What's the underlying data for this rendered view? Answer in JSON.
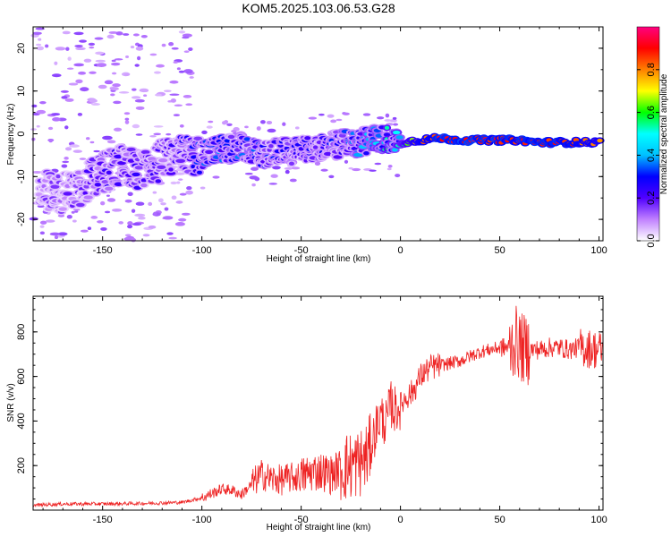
{
  "title": "KOM5.2025.103.06.53.G28",
  "chart_data": [
    {
      "type": "heatmap",
      "xlabel": "Height of straight line (km)",
      "ylabel": "Frequency (Hz)",
      "xlim": [
        -185,
        102
      ],
      "ylim": [
        -25,
        25
      ],
      "xticks": [
        -150,
        -100,
        -50,
        0,
        50,
        100
      ],
      "yticks": [
        -20,
        -10,
        0,
        10,
        20
      ],
      "colorbar": {
        "label": "Normalized spectral amplitude",
        "range": [
          0,
          1
        ],
        "ticks": [
          0.0,
          0.2,
          0.4,
          0.6,
          0.8
        ],
        "colormap": [
          "#ffffff",
          "#c080ff",
          "#5000ff",
          "#0000ff",
          "#00c0ff",
          "#00ffff",
          "#00ff00",
          "#ffff00",
          "#ff8000",
          "#ff0000",
          "#ff0080"
        ]
      },
      "ridge": {
        "x": [
          -180,
          -170,
          -160,
          -150,
          -140,
          -130,
          -120,
          -110,
          -100,
          -90,
          -80,
          -70,
          -60,
          -50,
          -40,
          -30,
          -20,
          -10,
          0,
          10,
          20,
          30,
          40,
          50,
          60,
          70,
          80,
          90,
          100
        ],
        "frequency": [
          -13,
          -14,
          -12,
          -9,
          -7,
          -9,
          -6,
          -5,
          -5,
          -3.5,
          -3,
          -5,
          -4,
          -4,
          -3,
          -2.5,
          -2,
          -1,
          -2,
          -1.5,
          -1,
          -1.5,
          -1.5,
          -1.5,
          -1.5,
          -2,
          -2,
          -2,
          -2
        ],
        "amplitude": [
          0.15,
          0.15,
          0.18,
          0.2,
          0.22,
          0.2,
          0.2,
          0.22,
          0.3,
          0.35,
          0.3,
          0.3,
          0.25,
          0.25,
          0.25,
          0.28,
          0.35,
          0.45,
          0.5,
          0.8,
          0.9,
          0.92,
          0.9,
          0.9,
          0.88,
          0.9,
          0.88,
          0.85,
          0.75
        ]
      }
    },
    {
      "type": "line",
      "xlabel": "Height of straight line (km)",
      "ylabel": "SNR (v/v)",
      "xlim": [
        -185,
        102
      ],
      "ylim": [
        0,
        960
      ],
      "xticks": [
        -150,
        -100,
        -50,
        0,
        50,
        100
      ],
      "yticks": [
        200,
        400,
        600,
        800
      ],
      "color": "#ee2222",
      "series": [
        {
          "x": [
            -185,
            -170,
            -150,
            -130,
            -110,
            -100,
            -95,
            -90,
            -85,
            -80,
            -75,
            -70,
            -65,
            -60,
            -55,
            -50,
            -45,
            -40,
            -35,
            -30,
            -25,
            -20,
            -17,
            -15,
            -12,
            -10,
            -7,
            -5,
            -3,
            0,
            3,
            5,
            8,
            10,
            15,
            20,
            25,
            30,
            35,
            40,
            45,
            50,
            55,
            58,
            60,
            62,
            65,
            70,
            75,
            80,
            85,
            90,
            95,
            100,
            102
          ],
          "values": [
            22,
            28,
            28,
            30,
            35,
            55,
            75,
            95,
            90,
            70,
            115,
            160,
            140,
            135,
            145,
            150,
            170,
            175,
            160,
            190,
            200,
            215,
            240,
            280,
            380,
            420,
            390,
            480,
            450,
            470,
            510,
            520,
            560,
            600,
            640,
            650,
            660,
            670,
            690,
            710,
            720,
            730,
            730,
            760,
            740,
            720,
            720,
            720,
            730,
            730,
            720,
            730,
            725,
            720,
            715
          ]
        }
      ]
    }
  ]
}
